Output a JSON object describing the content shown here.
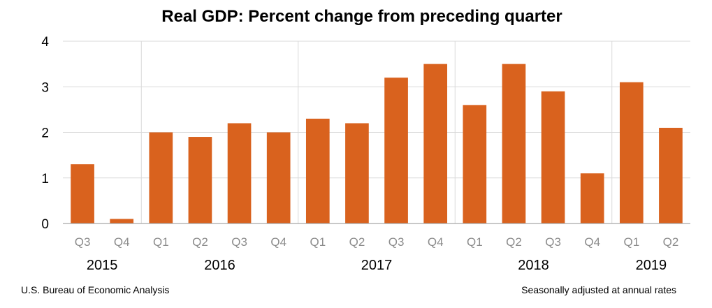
{
  "chart_data": {
    "type": "bar",
    "title": "Real GDP:  Percent change from preceding quarter",
    "xlabel": "",
    "ylabel": "",
    "ylim": [
      0,
      4
    ],
    "y_ticks": [
      "0",
      "1",
      "2",
      "3",
      "4"
    ],
    "categories": [
      "Q3",
      "Q4",
      "Q1",
      "Q2",
      "Q3",
      "Q4",
      "Q1",
      "Q2",
      "Q3",
      "Q4",
      "Q1",
      "Q2",
      "Q3",
      "Q4",
      "Q1",
      "Q2"
    ],
    "values": [
      1.3,
      0.1,
      2.0,
      1.9,
      2.2,
      2.0,
      2.3,
      2.2,
      3.2,
      3.5,
      2.6,
      3.5,
      2.9,
      1.1,
      3.1,
      2.1
    ],
    "year_groups": [
      {
        "label": "2015",
        "count": 2
      },
      {
        "label": "2016",
        "count": 4
      },
      {
        "label": "2017",
        "count": 4
      },
      {
        "label": "2018",
        "count": 4
      },
      {
        "label": "2019",
        "count": 2
      }
    ],
    "grid": true,
    "bar_color": "#D9621E",
    "grid_color": "#d9d9d9",
    "source": "U.S. Bureau of Economic Analysis",
    "note": "Seasonally adjusted at annual rates"
  }
}
